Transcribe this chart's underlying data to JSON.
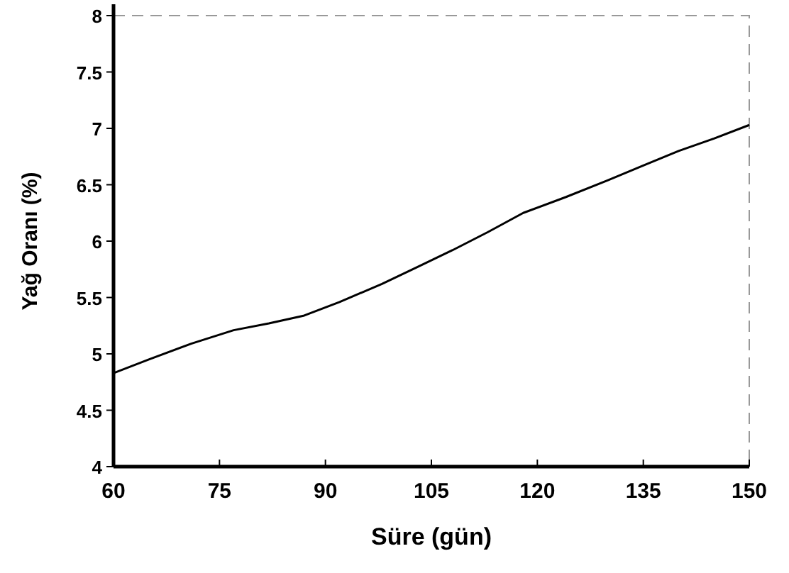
{
  "chart_data": {
    "type": "line",
    "xlabel": "Süre (gün)",
    "ylabel": "Yağ Oranı (%)",
    "x": [
      60,
      65,
      71,
      77,
      82,
      87,
      92,
      98,
      103,
      108,
      113,
      118,
      124,
      130,
      135,
      140,
      145,
      150
    ],
    "series": [
      {
        "color": "#000000",
        "values": [
          4.83,
          4.95,
          5.09,
          5.21,
          5.27,
          5.34,
          5.46,
          5.62,
          5.77,
          5.92,
          6.08,
          6.25,
          6.39,
          6.54,
          6.67,
          6.8,
          6.91,
          7.03
        ]
      }
    ],
    "xlim": [
      60,
      150
    ],
    "xticks": [
      60,
      75,
      90,
      105,
      120,
      135,
      150
    ],
    "ylim": [
      4,
      8
    ],
    "yticks": [
      4,
      4.5,
      5,
      5.5,
      6,
      6.5,
      7,
      7.5,
      8
    ],
    "grid": false,
    "marker": "none",
    "line_style": "solid"
  }
}
